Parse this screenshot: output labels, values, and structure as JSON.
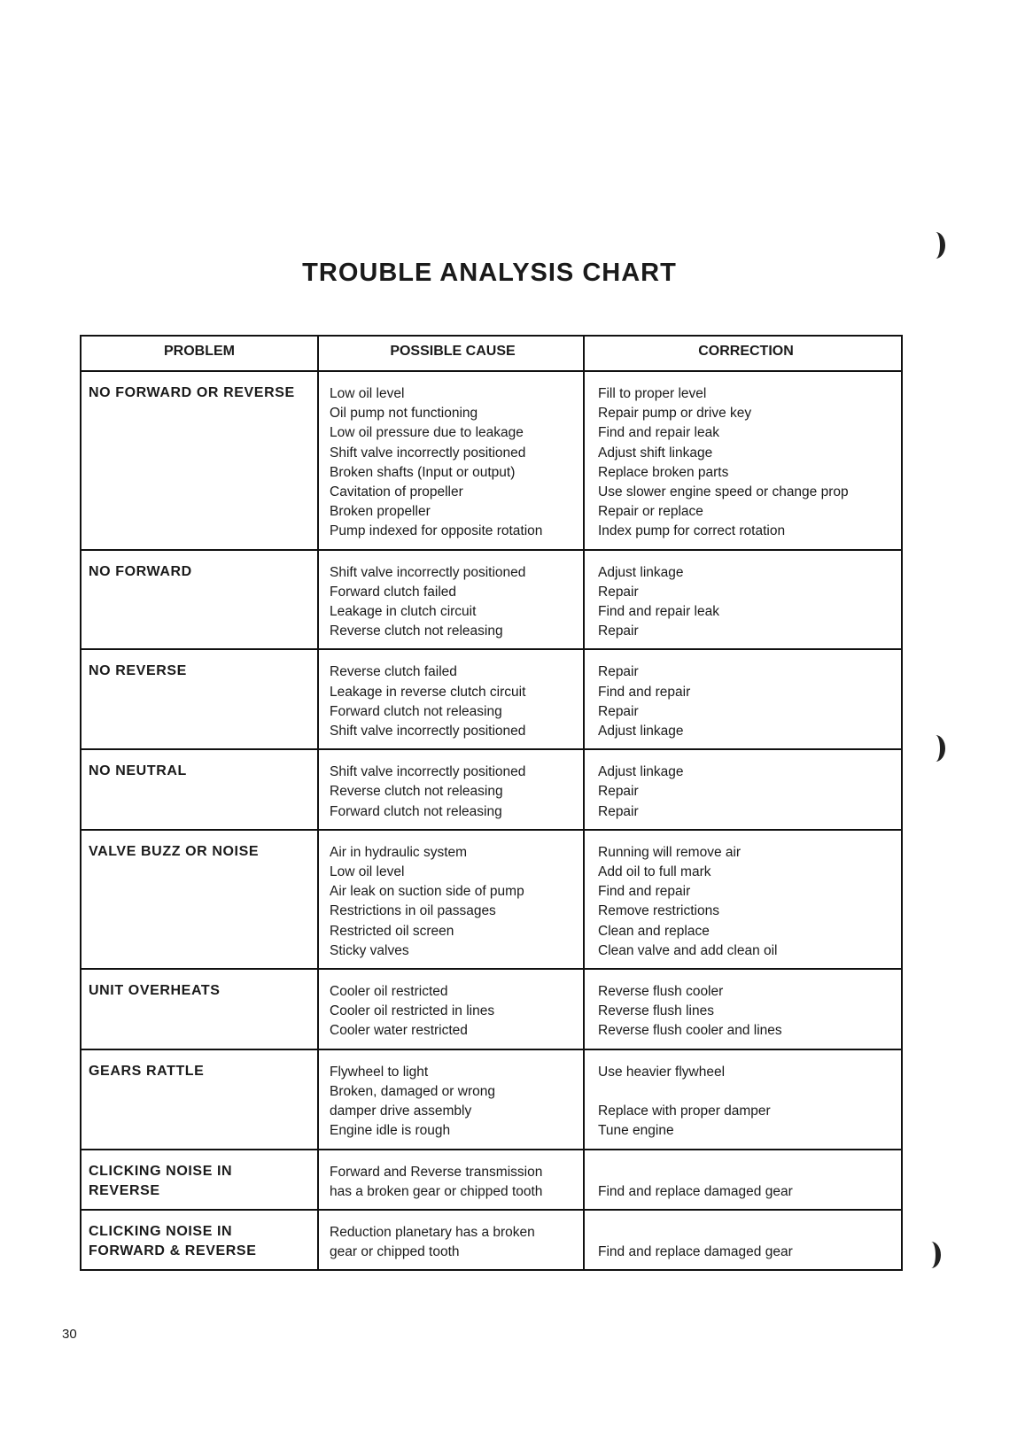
{
  "title": "TROUBLE ANALYSIS CHART",
  "headers": {
    "problem": "PROBLEM",
    "cause": "POSSIBLE CAUSE",
    "correction": "CORRECTION"
  },
  "rows": [
    {
      "problem": [
        "NO FORWARD OR REVERSE"
      ],
      "causes": [
        "Low oil level",
        "Oil pump not functioning",
        "Low oil pressure due to leakage",
        "Shift valve incorrectly positioned",
        "Broken shafts (Input or output)",
        "Cavitation of propeller",
        "Broken propeller",
        "Pump indexed for opposite rotation"
      ],
      "corrections": [
        "Fill to proper level",
        "Repair pump or drive key",
        "Find and repair leak",
        "Adjust shift linkage",
        "Replace broken parts",
        "Use slower engine speed or change prop",
        "Repair or replace",
        "Index pump for correct rotation"
      ]
    },
    {
      "problem": [
        "NO FORWARD"
      ],
      "causes": [
        "Shift valve incorrectly positioned",
        "Forward clutch failed",
        "Leakage in clutch circuit",
        "Reverse clutch not releasing"
      ],
      "corrections": [
        "Adjust linkage",
        "Repair",
        "Find and repair leak",
        "Repair"
      ]
    },
    {
      "problem": [
        "NO REVERSE"
      ],
      "causes": [
        "Reverse clutch failed",
        "Leakage in reverse clutch circuit",
        "Forward clutch not releasing",
        "Shift valve incorrectly positioned"
      ],
      "corrections": [
        "Repair",
        "Find and repair",
        "Repair",
        "Adjust linkage"
      ]
    },
    {
      "problem": [
        "NO NEUTRAL"
      ],
      "causes": [
        "Shift valve incorrectly positioned",
        "Reverse clutch not releasing",
        "Forward clutch not releasing"
      ],
      "corrections": [
        "Adjust linkage",
        "Repair",
        "Repair"
      ]
    },
    {
      "problem": [
        "VALVE BUZZ OR NOISE"
      ],
      "causes": [
        "Air in hydraulic system",
        "Low oil level",
        "Air leak on suction side of pump",
        "Restrictions in oil passages",
        "Restricted oil screen",
        "Sticky valves"
      ],
      "corrections": [
        "Running will remove air",
        "Add oil to full mark",
        "Find and repair",
        "Remove restrictions",
        "Clean and replace",
        "Clean valve and add clean oil"
      ]
    },
    {
      "problem": [
        "UNIT OVERHEATS"
      ],
      "causes": [
        "Cooler oil restricted",
        "Cooler oil restricted in lines",
        "Cooler water restricted"
      ],
      "corrections": [
        "Reverse flush cooler",
        "Reverse flush lines",
        "Reverse flush cooler and lines"
      ]
    },
    {
      "problem": [
        "GEARS RATTLE"
      ],
      "causes": [
        "Flywheel to light",
        "Broken, damaged or wrong",
        "damper drive assembly",
        "Engine idle is rough"
      ],
      "corrections": [
        "Use heavier flywheel",
        "",
        "Replace with proper damper",
        "Tune engine"
      ]
    },
    {
      "problem": [
        "CLICKING NOISE IN",
        "REVERSE"
      ],
      "causes": [
        "Forward and Reverse transmission",
        "has a broken gear or chipped tooth"
      ],
      "corrections": [
        "",
        "Find and replace damaged gear"
      ]
    },
    {
      "problem": [
        "CLICKING NOISE IN",
        "FORWARD & REVERSE"
      ],
      "causes": [
        "Reduction planetary has a broken",
        "gear or chipped tooth"
      ],
      "corrections": [
        "",
        "Find and replace damaged gear"
      ]
    }
  ],
  "page_number": "30"
}
